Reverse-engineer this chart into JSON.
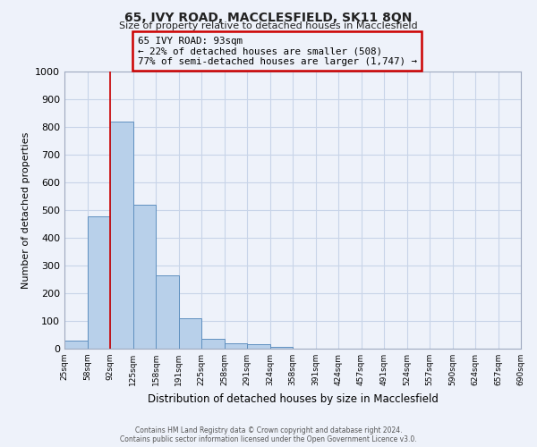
{
  "title": "65, IVY ROAD, MACCLESFIELD, SK11 8QN",
  "subtitle": "Size of property relative to detached houses in Macclesfield",
  "xlabel": "Distribution of detached houses by size in Macclesfield",
  "ylabel": "Number of detached properties",
  "bar_values": [
    30,
    478,
    820,
    518,
    263,
    110,
    37,
    20,
    15,
    8,
    0,
    0,
    0,
    0,
    0,
    0,
    0,
    0,
    0,
    0
  ],
  "bin_labels": [
    "25sqm",
    "58sqm",
    "92sqm",
    "125sqm",
    "158sqm",
    "191sqm",
    "225sqm",
    "258sqm",
    "291sqm",
    "324sqm",
    "358sqm",
    "391sqm",
    "424sqm",
    "457sqm",
    "491sqm",
    "524sqm",
    "557sqm",
    "590sqm",
    "624sqm",
    "657sqm",
    "690sqm"
  ],
  "bar_color": "#b8d0ea",
  "bar_edge_color": "#6090c0",
  "grid_color": "#c8d4e8",
  "background_color": "#eef2fa",
  "vline_x_bar": 2,
  "vline_color": "#cc0000",
  "box_text_line1": "65 IVY ROAD: 93sqm",
  "box_text_line2": "← 22% of detached houses are smaller (508)",
  "box_text_line3": "77% of semi-detached houses are larger (1,747) →",
  "box_edge_color": "#cc0000",
  "ylim": [
    0,
    1000
  ],
  "yticks": [
    0,
    100,
    200,
    300,
    400,
    500,
    600,
    700,
    800,
    900,
    1000
  ],
  "footer_line1": "Contains HM Land Registry data © Crown copyright and database right 2024.",
  "footer_line2": "Contains public sector information licensed under the Open Government Licence v3.0."
}
